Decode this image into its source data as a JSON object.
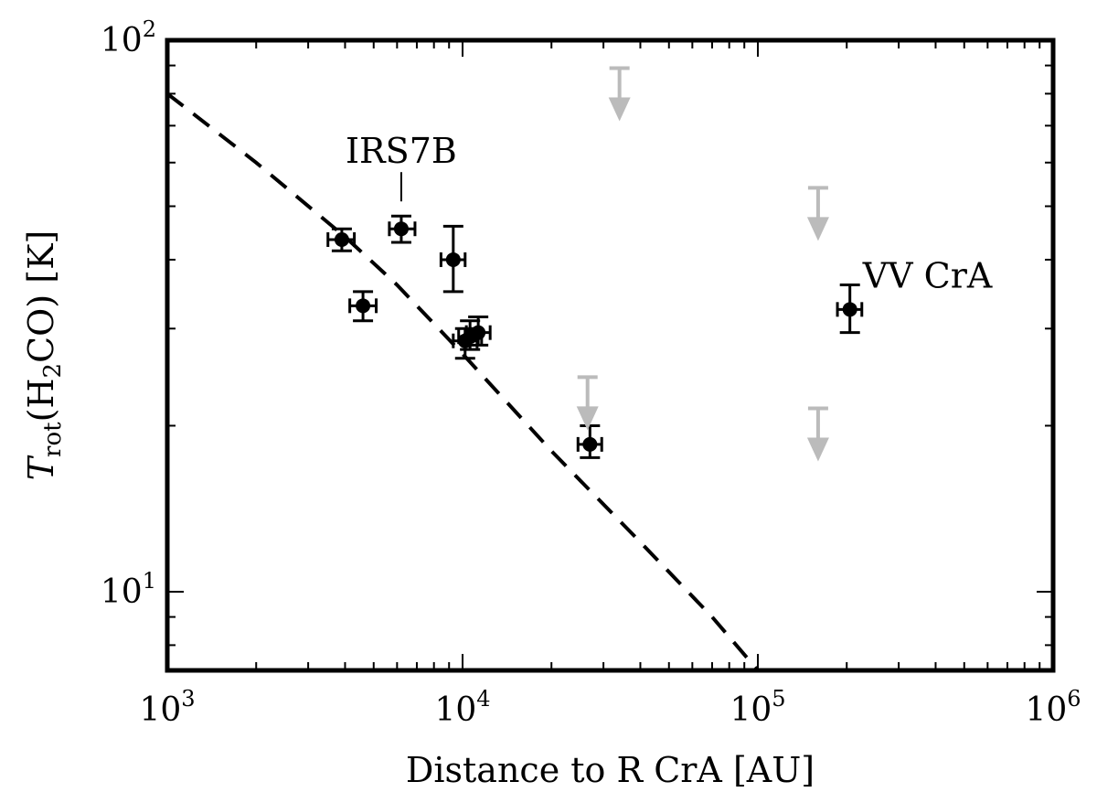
{
  "chart_data": {
    "type": "scatter",
    "xlabel": "Distance to R CrA [AU]",
    "ylabel": {
      "italic": "T",
      "subscript": "rot",
      "mid": "(H",
      "sub2": "2",
      "rest": "CO) [K]"
    },
    "x_scale": "log",
    "y_scale": "log",
    "xlim": [
      1000,
      1000000
    ],
    "ylim": [
      7.2,
      100
    ],
    "grid": false,
    "x_ticks": [
      {
        "value": 1000,
        "base": "10",
        "exp": "3"
      },
      {
        "value": 10000,
        "base": "10",
        "exp": "4"
      },
      {
        "value": 100000,
        "base": "10",
        "exp": "5"
      },
      {
        "value": 1000000,
        "base": "10",
        "exp": "6"
      }
    ],
    "y_ticks": [
      {
        "value": 10,
        "base": "10",
        "exp": "1"
      },
      {
        "value": 100,
        "base": "10",
        "exp": "2"
      }
    ],
    "series": [
      {
        "kind": "detections",
        "color": "#000000",
        "points": [
          {
            "x": 3900,
            "y": 43.5,
            "xlo": 3500,
            "xhi": 4300,
            "ylo": 41.5,
            "yhi": 45.5
          },
          {
            "x": 4600,
            "y": 33.0,
            "xlo": 4150,
            "xhi": 5100,
            "ylo": 31.0,
            "yhi": 35.0
          },
          {
            "x": 6200,
            "y": 45.5,
            "xlo": 5650,
            "xhi": 6900,
            "ylo": 43.0,
            "yhi": 48.0
          },
          {
            "x": 9300,
            "y": 40.0,
            "xlo": 8450,
            "xhi": 10200,
            "ylo": 35.0,
            "yhi": 46.0
          },
          {
            "x": 10200,
            "y": 28.5,
            "xlo": 9300,
            "xhi": 11200,
            "ylo": 26.5,
            "yhi": 30.0
          },
          {
            "x": 10600,
            "y": 29.0,
            "xlo": 9700,
            "xhi": 11600,
            "ylo": 27.5,
            "yhi": 31.0
          },
          {
            "x": 11300,
            "y": 29.5,
            "xlo": 10300,
            "xhi": 12400,
            "ylo": 28.0,
            "yhi": 31.5
          },
          {
            "x": 27000,
            "y": 18.5,
            "xlo": 24600,
            "xhi": 29600,
            "ylo": 17.5,
            "yhi": 20.0
          },
          {
            "x": 205000,
            "y": 32.5,
            "xlo": 186000,
            "xhi": 225000,
            "ylo": 29.5,
            "yhi": 36.0
          }
        ]
      },
      {
        "kind": "upper_limits",
        "color": "#bbbbbb",
        "points": [
          {
            "x": 34000,
            "y": 89
          },
          {
            "x": 160000,
            "y": 54
          },
          {
            "x": 26500,
            "y": 24.5
          },
          {
            "x": 160000,
            "y": 21.5
          }
        ]
      },
      {
        "kind": "model_curve",
        "style": "dashed",
        "color": "#000000",
        "points": [
          {
            "x": 1000,
            "y": 80
          },
          {
            "x": 2000,
            "y": 60
          },
          {
            "x": 4000,
            "y": 44
          },
          {
            "x": 6000,
            "y": 36
          },
          {
            "x": 10000,
            "y": 27
          },
          {
            "x": 20000,
            "y": 18
          },
          {
            "x": 40000,
            "y": 12.3
          },
          {
            "x": 70000,
            "y": 9.0
          },
          {
            "x": 100000,
            "y": 7.2
          }
        ]
      }
    ],
    "annotations": [
      {
        "text": "IRS7B",
        "x": 6200,
        "y": 45.5,
        "kind": "leader"
      },
      {
        "text": "VV CrA",
        "x": 205000,
        "y": 32.5,
        "kind": "right"
      }
    ]
  }
}
